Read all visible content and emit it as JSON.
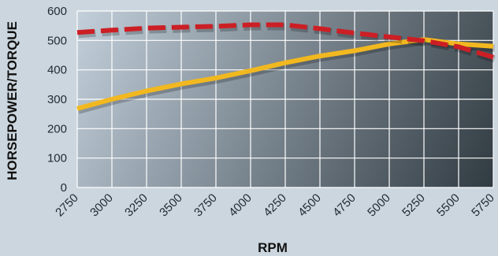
{
  "chart_data": {
    "type": "line",
    "title": "",
    "xlabel": "RPM",
    "ylabel": "HORSEPOWER/TORQUE",
    "x": [
      2750,
      3000,
      3250,
      3500,
      3750,
      4000,
      4250,
      4500,
      4750,
      5000,
      5250,
      5500,
      5750
    ],
    "ylim": [
      0,
      600
    ],
    "yticks": [
      0,
      100,
      200,
      300,
      400,
      500,
      600
    ],
    "xlim": [
      2750,
      5750
    ],
    "grid": true,
    "series": [
      {
        "color": "#f2b81f",
        "style": "solid",
        "values": [
          268,
          300,
          328,
          352,
          372,
          397,
          424,
          447,
          465,
          488,
          503,
          488,
          480
        ]
      },
      {
        "color": "#cc1f25",
        "style": "dashed",
        "values": [
          527,
          535,
          542,
          545,
          548,
          553,
          553,
          540,
          525,
          512,
          499,
          478,
          443
        ]
      }
    ]
  }
}
